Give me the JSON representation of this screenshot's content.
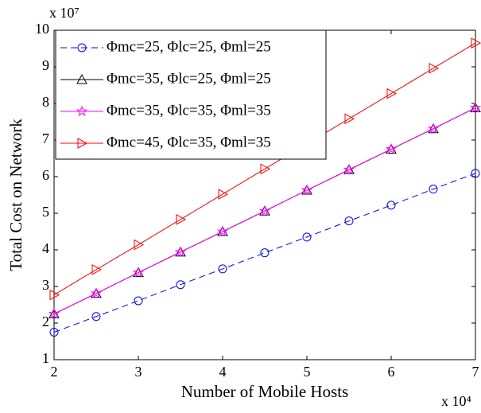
{
  "chart_data": {
    "type": "line",
    "xlabel": "Number of Mobile Hosts",
    "ylabel": "Total Cost on Network",
    "x_multiplier": "x 10⁴",
    "y_multiplier": "x 10⁷",
    "x": [
      2,
      2.5,
      3,
      3.5,
      4,
      4.5,
      5,
      5.5,
      6,
      6.5,
      7
    ],
    "series": [
      {
        "name": "Φmc=25, Φlc=25, Φml=25",
        "color": "#0000ff",
        "marker": "circle",
        "dashed": true,
        "values": [
          1.75,
          2.18,
          2.61,
          3.05,
          3.48,
          3.92,
          4.35,
          4.79,
          5.22,
          5.66,
          6.09
        ]
      },
      {
        "name": "Φmc=35, Φlc=25, Φml=25",
        "color": "#000000",
        "marker": "triangle-up",
        "dashed": false,
        "values": [
          2.25,
          2.81,
          3.38,
          3.94,
          4.5,
          5.06,
          5.63,
          6.19,
          6.75,
          7.31,
          7.88
        ]
      },
      {
        "name": "Φmc=35, Φlc=35, Φml=35",
        "color": "#ff00ff",
        "marker": "star",
        "dashed": false,
        "values": [
          2.25,
          2.81,
          3.38,
          3.94,
          4.5,
          5.06,
          5.63,
          6.19,
          6.75,
          7.31,
          7.88
        ]
      },
      {
        "name": "Φmc=45, Φlc=35, Φml=35",
        "color": "#ff0000",
        "marker": "triangle-right",
        "dashed": false,
        "values": [
          2.77,
          3.46,
          4.14,
          4.83,
          5.52,
          6.21,
          6.9,
          7.58,
          8.27,
          8.96,
          9.65
        ]
      }
    ],
    "xlim": [
      2,
      7
    ],
    "ylim": [
      1,
      10
    ],
    "xticks": [
      2,
      3,
      4,
      5,
      6,
      7
    ],
    "yticks": [
      1,
      2,
      3,
      4,
      5,
      6,
      7,
      8,
      9,
      10
    ],
    "grid": false,
    "legend": "upper left"
  }
}
